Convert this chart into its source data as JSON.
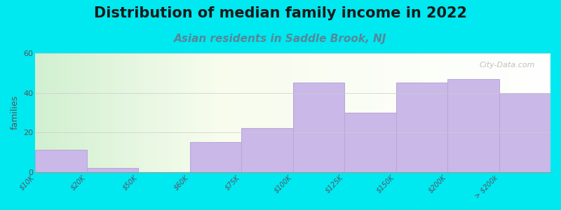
{
  "title": "Distribution of median family income in 2022",
  "subtitle": "Asian residents in Saddle Brook, NJ",
  "ylabel": "families",
  "background_color": "#00e8f0",
  "bar_color": "#c9b8e8",
  "bar_edge_color": "#b8a8d8",
  "categories": [
    "$10K",
    "$20K",
    "$50K",
    "$60K",
    "$75K",
    "$100K",
    "$125K",
    "$150K",
    "$200K",
    "> $200k"
  ],
  "values": [
    11,
    2,
    0,
    15,
    22,
    45,
    30,
    45,
    47,
    40
  ],
  "ylim": [
    0,
    60
  ],
  "yticks": [
    0,
    20,
    40,
    60
  ],
  "title_fontsize": 15,
  "subtitle_fontsize": 11,
  "watermark": "City-Data.com",
  "title_color": "#1a1a1a",
  "subtitle_color": "#558899",
  "ylabel_color": "#555555"
}
